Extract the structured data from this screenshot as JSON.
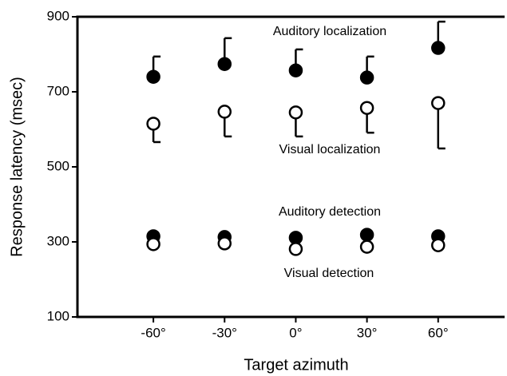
{
  "chart_data": {
    "type": "scatter",
    "xlabel": "Target azimuth",
    "ylabel": "Response latency (msec)",
    "x": [
      -60,
      -30,
      0,
      30,
      60
    ],
    "xlim": [
      -92,
      88
    ],
    "xticks": [
      {
        "value": -60,
        "label": "-60°"
      },
      {
        "value": -30,
        "label": "-30°"
      },
      {
        "value": 0,
        "label": "0°"
      },
      {
        "value": 30,
        "label": "30°"
      },
      {
        "value": 60,
        "label": "60°"
      }
    ],
    "ylim": [
      100,
      900
    ],
    "yticks": [
      100,
      300,
      500,
      700,
      900
    ],
    "series": [
      {
        "name": "Auditory localization",
        "color": "#000000",
        "marker": "filled",
        "error_side": "up",
        "values": [
          740,
          774,
          757,
          738,
          817
        ],
        "errors": [
          54,
          69,
          56,
          56,
          70
        ]
      },
      {
        "name": "Visual localization",
        "color": "#000000",
        "marker": "open",
        "error_side": "down",
        "values": [
          615,
          647,
          645,
          657,
          670
        ],
        "errors": [
          49,
          66,
          64,
          66,
          121
        ]
      },
      {
        "name": "Auditory detection",
        "color": "#000000",
        "marker": "filled",
        "values": [
          315,
          313,
          311,
          319,
          315
        ]
      },
      {
        "name": "Visual detection",
        "color": "#000000",
        "marker": "open",
        "values": [
          294,
          296,
          281,
          287,
          291
        ]
      }
    ]
  }
}
